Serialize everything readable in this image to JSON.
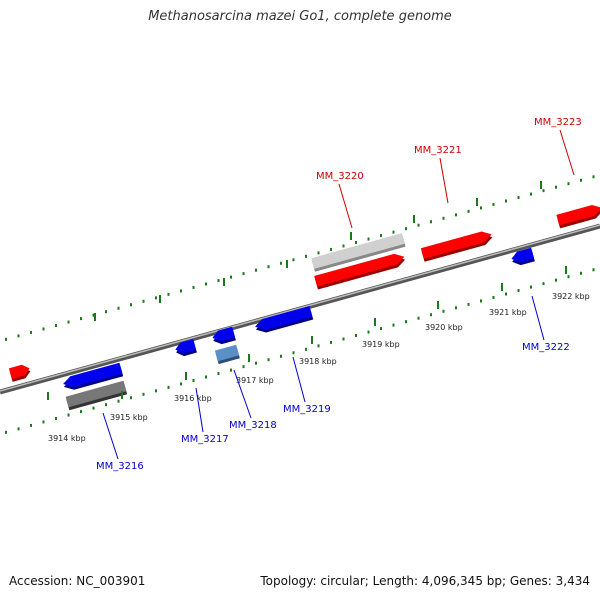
{
  "title": "Methanosarcina mazei Go1, complete genome",
  "footer": {
    "accession": "Accession: NC_003901",
    "summary": "Topology: circular; Length: 4,096,345 bp; Genes: 3,434"
  },
  "colors": {
    "forward_gene": "#ff0000",
    "reverse_gene": "#0000ff",
    "forward_label": "#cc0000",
    "reverse_label": "#0000cc",
    "backbone": "#888888",
    "tick": "#1a7a1a"
  },
  "ticks": [
    {
      "label": "3914 kbp"
    },
    {
      "label": "3915 kbp"
    },
    {
      "label": "3916 kbp"
    },
    {
      "label": "3917 kbp"
    },
    {
      "label": "3918 kbp"
    },
    {
      "label": "3919 kbp"
    },
    {
      "label": "3920 kbp"
    },
    {
      "label": "3921 kbp"
    },
    {
      "label": "3922 kbp"
    }
  ],
  "genes": [
    {
      "label": "MM_3216"
    },
    {
      "label": "MM_3217"
    },
    {
      "label": "MM_3218"
    },
    {
      "label": "MM_3219"
    },
    {
      "label": "MM_3220"
    },
    {
      "label": "MM_3221"
    },
    {
      "label": "MM_3222"
    },
    {
      "label": "MM_3223"
    }
  ]
}
